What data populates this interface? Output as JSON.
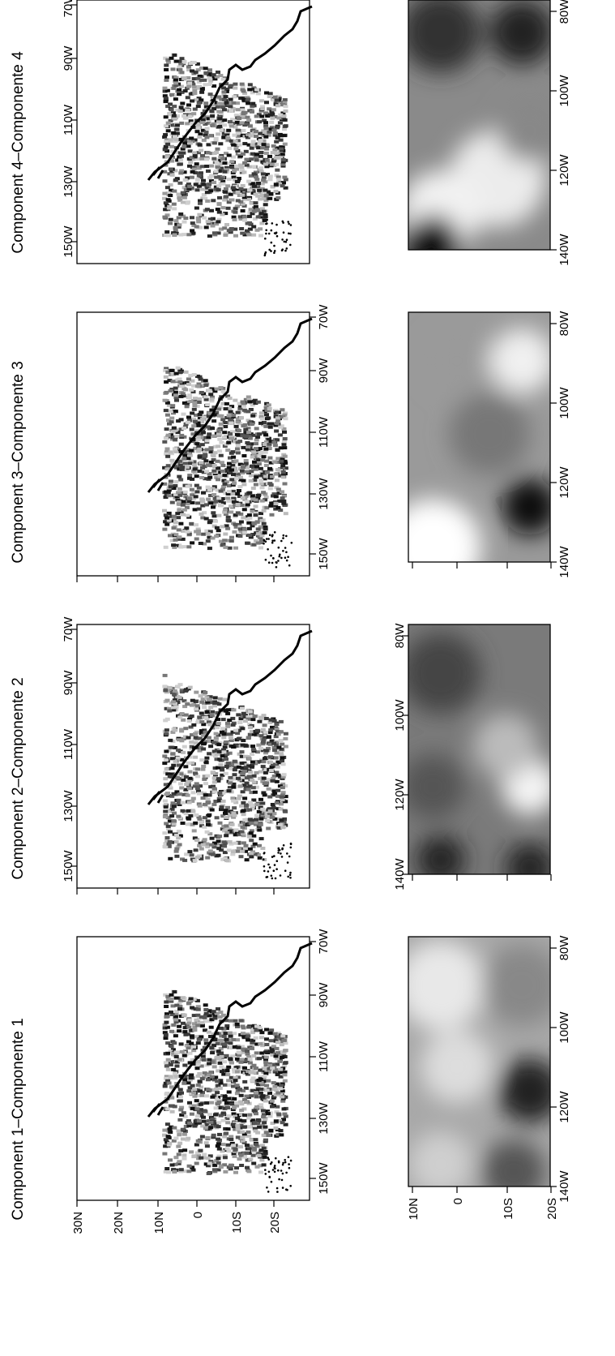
{
  "figure": {
    "orientation": "rotated 90 degrees counter-clockwise",
    "panel_titles": [
      "Component 1–Componente 1",
      "Component 2–Componente 2",
      "Component 3–Componente 3",
      "Component 4–Componente 4"
    ],
    "map_lon_ticks": [
      "150W",
      "130W",
      "110W",
      "90W",
      "70W"
    ],
    "map_lat_ticks": [
      "30N",
      "20N",
      "10N",
      "0",
      "10S",
      "20S"
    ],
    "field_lon_ticks": [
      "140W",
      "120W",
      "100W",
      "80W"
    ],
    "field_lat_ticks": [
      "10N",
      "0",
      "10S",
      "20S"
    ],
    "colors": {
      "land_outline": "#000000",
      "frame": "#000000",
      "background": "#ffffff"
    }
  },
  "chart_data": [
    {
      "type": "heatmap",
      "title": "Component 1–Componente 1",
      "description": "Gridded catch map and smoothed spatial field, grayscale intensity"
    },
    {
      "type": "heatmap",
      "title": "Component 2–Componente 2",
      "description": "Gridded catch map and smoothed spatial field, grayscale intensity"
    },
    {
      "type": "heatmap",
      "title": "Component 3–Componente 3",
      "description": "Gridded catch map and smoothed spatial field, grayscale intensity"
    },
    {
      "type": "heatmap",
      "title": "Component 4–Componente 4",
      "description": "Gridded catch map and smoothed spatial field, grayscale intensity"
    }
  ]
}
